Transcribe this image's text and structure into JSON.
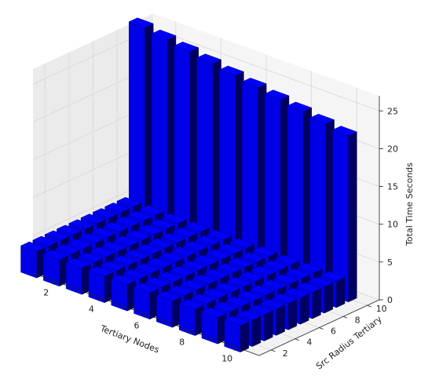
{
  "chart_data": {
    "type": "bar3d",
    "title": "",
    "xlabel": "Tertiary Nodes",
    "ylabel": "Src Radius Tertiary",
    "zlabel": "Total Time Seconds",
    "x_ticks": [
      2,
      4,
      6,
      8,
      10
    ],
    "y_ticks": [
      2,
      4,
      6,
      8,
      10
    ],
    "z_ticks": [
      0,
      5,
      10,
      15,
      20,
      25
    ],
    "xlim": [
      1,
      11
    ],
    "ylim": [
      1,
      11
    ],
    "zlim": [
      0,
      27
    ],
    "x": [
      1,
      2,
      3,
      4,
      5,
      6,
      7,
      8,
      9,
      10
    ],
    "y": [
      1,
      2,
      3,
      4,
      5,
      6,
      7,
      8,
      9,
      10
    ],
    "grid": true,
    "bar_color": "#0000ff",
    "values": [
      [
        3.5,
        3.5,
        3.5,
        3.5,
        3.5,
        3.5,
        3.5,
        3.5,
        3.5,
        26.5
      ],
      [
        3.5,
        3.5,
        3.5,
        3.5,
        3.5,
        3.5,
        3.5,
        3.5,
        3.5,
        26.0
      ],
      [
        3.5,
        3.5,
        3.5,
        3.5,
        3.5,
        3.5,
        3.5,
        3.5,
        3.5,
        25.5
      ],
      [
        3.5,
        3.5,
        3.5,
        3.5,
        3.5,
        3.5,
        3.5,
        3.5,
        3.5,
        25.0
      ],
      [
        3.5,
        3.5,
        3.5,
        3.5,
        3.5,
        3.5,
        3.5,
        3.5,
        3.5,
        24.5
      ],
      [
        3.5,
        3.5,
        3.5,
        3.5,
        3.5,
        3.5,
        3.5,
        3.5,
        3.5,
        24.0
      ],
      [
        3.5,
        3.5,
        3.5,
        3.5,
        3.5,
        3.5,
        3.5,
        3.5,
        3.5,
        23.5
      ],
      [
        3.5,
        3.5,
        3.5,
        3.5,
        3.5,
        3.5,
        3.5,
        3.5,
        3.5,
        23.0
      ],
      [
        3.5,
        3.5,
        3.5,
        3.5,
        3.5,
        3.5,
        3.5,
        3.5,
        3.5,
        22.5
      ],
      [
        3.5,
        3.5,
        3.5,
        3.5,
        3.5,
        3.5,
        3.5,
        3.5,
        3.5,
        22.0
      ]
    ]
  }
}
